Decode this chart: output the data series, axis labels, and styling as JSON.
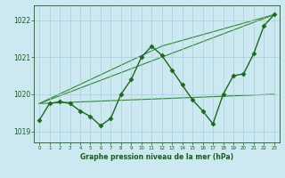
{
  "title": "Graphe pression niveau de la mer (hPa)",
  "bg_color": "#cce8f0",
  "grid_color": "#aaccda",
  "line_color_dark": "#1a5c1a",
  "xlim": [
    -0.5,
    23.5
  ],
  "ylim": [
    1018.7,
    1022.4
  ],
  "yticks": [
    1019,
    1020,
    1021,
    1022
  ],
  "xticks": [
    0,
    1,
    2,
    3,
    4,
    5,
    6,
    7,
    8,
    9,
    10,
    11,
    12,
    13,
    14,
    15,
    16,
    17,
    18,
    19,
    20,
    21,
    22,
    23
  ],
  "main_x": [
    0,
    1,
    2,
    3,
    4,
    5,
    6,
    7,
    8,
    9,
    10,
    11,
    12,
    13,
    14,
    15,
    16,
    17,
    18,
    19,
    20,
    21,
    22,
    23
  ],
  "main_y": [
    1019.3,
    1019.75,
    1019.8,
    1019.75,
    1019.55,
    1019.4,
    1019.15,
    1019.35,
    1020.0,
    1020.4,
    1021.0,
    1021.3,
    1021.05,
    1020.65,
    1020.25,
    1019.85,
    1019.55,
    1019.2,
    1020.0,
    1020.5,
    1020.55,
    1021.1,
    1021.85,
    1022.15
  ],
  "trend_lines": [
    {
      "x": [
        0,
        23
      ],
      "y": [
        1019.75,
        1022.15
      ]
    },
    {
      "x": [
        0,
        23
      ],
      "y": [
        1019.75,
        1020.0
      ]
    },
    {
      "x": [
        0,
        12,
        23
      ],
      "y": [
        1019.75,
        1021.3,
        1022.15
      ]
    }
  ],
  "main_color": "#1a6b1a",
  "trend_color": "#2e8b2e",
  "main_lw": 1.0,
  "trend_lw": 0.8,
  "marker": "D",
  "ms": 2.5
}
